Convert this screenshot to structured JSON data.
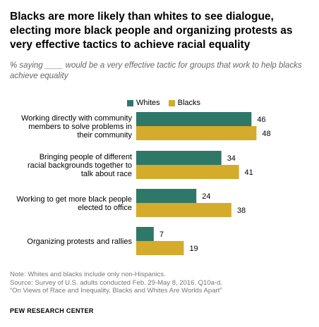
{
  "title": "Blacks are more likely than whites to see dialogue, electing more black people and organizing protests as very effective tactics to achieve racial equality",
  "subtitle": "% saying ____ would be a very effective tactic for groups that work to help blacks achieve equality",
  "colors": {
    "whites": "#2f7868",
    "blacks": "#d4ab2b"
  },
  "chart_data": {
    "type": "bar",
    "orientation": "horizontal",
    "categories": [
      [
        "Working directly with community",
        "members to solve problems in",
        "their community"
      ],
      [
        "Bringing people of different",
        "racial backgrounds together to",
        "talk about race"
      ],
      [
        "Working to get more black people",
        "elected to office"
      ],
      [
        "Organizing protests and rallies"
      ]
    ],
    "series": [
      {
        "name": "Whites",
        "values": [
          46,
          34,
          24,
          7
        ]
      },
      {
        "name": "Blacks",
        "values": [
          48,
          41,
          38,
          19
        ]
      }
    ],
    "xlim": [
      0,
      60
    ],
    "legend": "top"
  },
  "notes": [
    "Note: Whites and blacks include only non-Hispanics.",
    "Source: Survey of U.S. adults conducted Feb. 29-May 8, 2016. Q10a-d.",
    "“On Views of Race and Inequality, Blacks and Whites Are Worlds Apart”"
  ],
  "org": "PEW RESEARCH CENTER"
}
